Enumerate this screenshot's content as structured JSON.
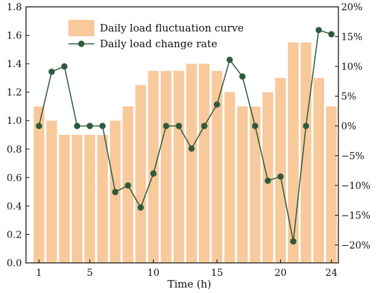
{
  "chart_data": {
    "type": "bar+line",
    "xlabel": "Time (h)",
    "x": [
      1,
      2,
      3,
      4,
      5,
      6,
      7,
      8,
      9,
      10,
      11,
      12,
      13,
      14,
      15,
      16,
      17,
      18,
      19,
      20,
      21,
      22,
      23,
      24
    ],
    "x_ticks": [
      1,
      5,
      10,
      15,
      20,
      24
    ],
    "x_tick_labels": [
      "1",
      "5",
      "10",
      "15",
      "20",
      "24"
    ],
    "y_left": {
      "range": [
        0,
        1.8
      ],
      "ticks": [
        0.0,
        0.2,
        0.4,
        0.6,
        0.8,
        1.0,
        1.2,
        1.4,
        1.6,
        1.8
      ],
      "tick_labels": [
        "0.0",
        "0.2",
        "0.4",
        "0.6",
        "0.8",
        "1.0",
        "1.2",
        "1.4",
        "1.6",
        "1.8"
      ]
    },
    "y_right": {
      "range": [
        -0.23,
        0.2
      ],
      "ticks": [
        -0.2,
        -0.15,
        -0.1,
        -0.05,
        0,
        0.05,
        0.1,
        0.15,
        0.2
      ],
      "tick_labels": [
        "−20%",
        "−15%",
        "−10%",
        "−5%",
        "0%",
        "5%",
        "10%",
        "15%",
        "20%"
      ]
    },
    "series": [
      {
        "name": "Daily load fluctuation curve",
        "type": "bar",
        "axis": "left",
        "color": "#F8C99B",
        "values": [
          1.1,
          1.0,
          0.9,
          0.9,
          0.9,
          0.9,
          1.0,
          1.1,
          1.25,
          1.35,
          1.35,
          1.35,
          1.4,
          1.4,
          1.35,
          1.2,
          1.1,
          1.1,
          1.2,
          1.3,
          1.55,
          1.55,
          1.3,
          1.1
        ]
      },
      {
        "name": "Daily load change rate",
        "type": "line",
        "axis": "right",
        "color": "#2E5E3F",
        "marker_color": "#2F5A3C",
        "values": [
          0,
          0.091,
          0.1,
          0,
          0,
          0,
          -0.111,
          -0.1,
          -0.137,
          -0.08,
          0,
          0,
          -0.038,
          0,
          0.036,
          0.111,
          0.083,
          0,
          -0.092,
          -0.085,
          -0.194,
          0,
          0.161,
          0.154
        ]
      }
    ],
    "legend": {
      "placement": "top-left",
      "entries": [
        "Daily load fluctuation curve",
        "Daily load change rate"
      ]
    },
    "grid": false
  }
}
